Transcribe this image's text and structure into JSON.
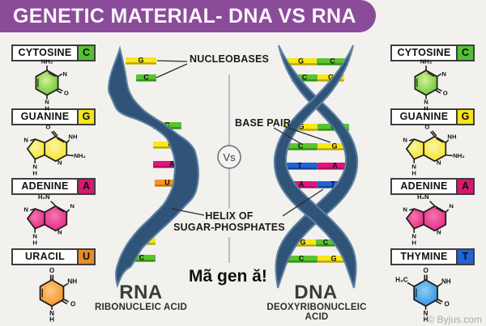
{
  "title": "GENETIC MATERIAL- DNA VS RNA",
  "panels": {
    "left": [
      {
        "name": "CYTOSINE",
        "letter": "C"
      },
      {
        "name": "GUANINE",
        "letter": "G"
      },
      {
        "name": "ADENINE",
        "letter": "A"
      },
      {
        "name": "URACIL",
        "letter": "U"
      }
    ],
    "right": [
      {
        "name": "CYTOSINE",
        "letter": "C"
      },
      {
        "name": "GUANINE",
        "letter": "G"
      },
      {
        "name": "ADENINE",
        "letter": "A"
      },
      {
        "name": "THYMINE",
        "letter": "T"
      }
    ]
  },
  "molecules": {
    "cytosine": {
      "sub": "NH₂",
      "n1": "N",
      "o1": "O",
      "n2": "N",
      "h": "H"
    },
    "guanine": {
      "o": "O",
      "nh": "NH",
      "nh2": "NH₂",
      "n1": "N",
      "n2": "N",
      "n3": "N",
      "h": "H"
    },
    "adenine": {
      "sub": "H₂N",
      "n1": "N",
      "n2": "N",
      "n3": "N",
      "n4": "N",
      "h": "H"
    },
    "uracil": {
      "o1": "O",
      "nh": "NH",
      "o2": "O",
      "n": "N",
      "h": "H"
    },
    "thymine": {
      "ch3": "H₃C",
      "o1": "O",
      "nh": "NH",
      "o2": "O",
      "n": "N",
      "h": "H"
    }
  },
  "center": {
    "nucleobases_label": "NUCLEOBASES",
    "base_pair_label": "BASE PAIR",
    "helix_label_line1": "HELIX OF",
    "helix_label_line2": "SUGAR-PHOSPHATES",
    "vs_label": "Vs",
    "annotation": "Mã gen ă!",
    "rna": {
      "title": "RNA",
      "subtitle": "RIBONUCLEIC ACID",
      "bases": [
        "G",
        "C",
        "C",
        "G",
        "A",
        "U",
        "G",
        "C"
      ]
    },
    "dna": {
      "title": "DNA",
      "subtitle": "DEOXYRIBONUCLEIC ACID",
      "pairs": [
        [
          "G",
          "C"
        ],
        [
          "C",
          "G"
        ],
        [
          "G",
          "C"
        ],
        [
          "C",
          "G"
        ],
        [
          "T",
          "A"
        ],
        [
          "A",
          "T"
        ],
        [
          "G",
          "C"
        ],
        [
          "C",
          "G"
        ]
      ]
    }
  },
  "colors": {
    "banner": "#8A4C99",
    "yellow": "#F8E719",
    "green": "#5BC230",
    "magenta": "#E2137D",
    "orange": "#F79420",
    "blue": "#2163D5",
    "helix": "#2F5478"
  },
  "watermark": "© Byjus.com"
}
